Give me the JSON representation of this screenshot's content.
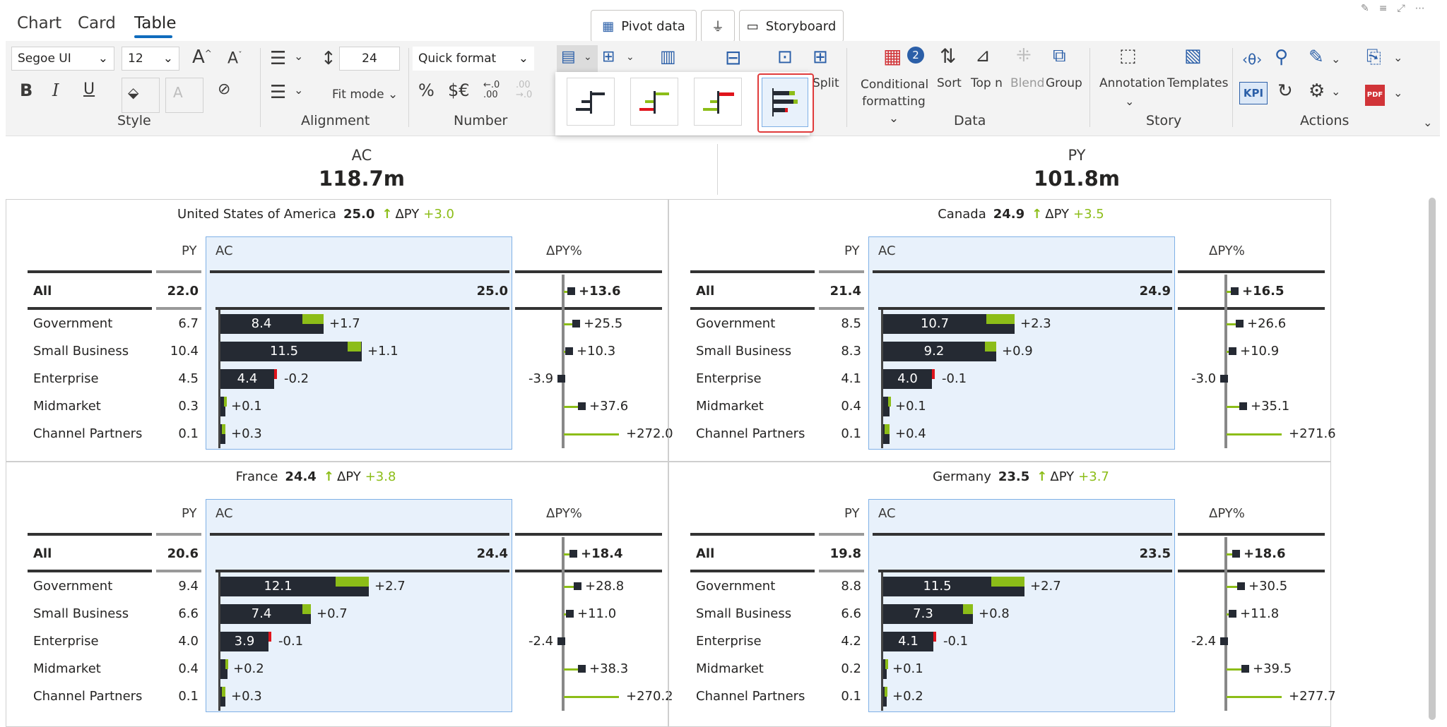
{
  "ribbon": {
    "tabs": [
      "Chart",
      "Card",
      "Table"
    ],
    "active_tab": "Table",
    "pivot_label": "Pivot data",
    "storyboard_label": "Storyboard",
    "font_family": "Segoe UI",
    "font_size": "12",
    "row_height": "24",
    "fit_mode": "Fit mode",
    "quick_format": "Quick format",
    "percent": "%",
    "currency": "$€",
    "dec_inc": ".0 .00",
    "dec_dec": ".00 .0",
    "groups": {
      "style": "Style",
      "alignment": "Alignment",
      "number": "Number",
      "data": "Data",
      "story": "Story",
      "actions": "Actions"
    },
    "split_label": "Split",
    "cond_format_label": "Conditional",
    "cond_format_label2": "formatting",
    "cond_badge": "2",
    "sort_label": "Sort",
    "topn_label": "Top n",
    "blend_label": "Blend",
    "group_label": "Group",
    "annotation_label": "Annotation",
    "templates_label": "Templates",
    "kpi_label": "KPI",
    "bold": "B",
    "italic": "I",
    "underline": "U"
  },
  "kpis": {
    "ac_label": "AC",
    "ac_value": "118.7m",
    "py_label": "PY",
    "py_value": "101.8m"
  },
  "colors": {
    "ac_bar": "#252a33",
    "positive": "#8cbd18",
    "negative": "#e0141c",
    "accent": "#0f6cbd"
  },
  "panels": [
    {
      "country": "United States of America",
      "total": "25.0",
      "dpy_label": "ΔPY",
      "dpy": "+3.0",
      "headers": {
        "py": "PY",
        "ac": "AC",
        "pct": "ΔPY%"
      },
      "rows": [
        {
          "label": "All",
          "py": "22.0",
          "ac": "25.0",
          "pct": "+13.6",
          "pctv": 13.6
        },
        {
          "label": "Government",
          "py": "6.7",
          "ac": "8.4",
          "delta": "+1.7",
          "acv": 8.4,
          "dv": 1.7,
          "pct": "+25.5",
          "pctv": 25.5
        },
        {
          "label": "Small Business",
          "py": "10.4",
          "ac": "11.5",
          "delta": "+1.1",
          "acv": 11.5,
          "dv": 1.1,
          "pct": "+10.3",
          "pctv": 10.3
        },
        {
          "label": "Enterprise",
          "py": "4.5",
          "ac": "4.4",
          "delta": "-0.2",
          "acv": 4.4,
          "dv": -0.2,
          "pct": "-3.9",
          "pctv": -3.9
        },
        {
          "label": "Midmarket",
          "py": "0.3",
          "ac": "",
          "delta": "+0.1",
          "acv": 0.4,
          "dv": 0.1,
          "pct": "+37.6",
          "pctv": 37.6
        },
        {
          "label": "Channel Partners",
          "py": "0.1",
          "ac": "",
          "delta": "+0.3",
          "acv": 0.4,
          "dv": 0.3,
          "pct": "+272.0",
          "pctv": 272.0
        }
      ]
    },
    {
      "country": "Canada",
      "total": "24.9",
      "dpy_label": "ΔPY",
      "dpy": "+3.5",
      "headers": {
        "py": "PY",
        "ac": "AC",
        "pct": "ΔPY%"
      },
      "rows": [
        {
          "label": "All",
          "py": "21.4",
          "ac": "24.9",
          "pct": "+16.5",
          "pctv": 16.5
        },
        {
          "label": "Government",
          "py": "8.5",
          "ac": "10.7",
          "delta": "+2.3",
          "acv": 10.7,
          "dv": 2.3,
          "pct": "+26.6",
          "pctv": 26.6
        },
        {
          "label": "Small Business",
          "py": "8.3",
          "ac": "9.2",
          "delta": "+0.9",
          "acv": 9.2,
          "dv": 0.9,
          "pct": "+10.9",
          "pctv": 10.9
        },
        {
          "label": "Enterprise",
          "py": "4.1",
          "ac": "4.0",
          "delta": "-0.1",
          "acv": 4.0,
          "dv": -0.1,
          "pct": "-3.0",
          "pctv": -3.0
        },
        {
          "label": "Midmarket",
          "py": "0.4",
          "ac": "",
          "delta": "+0.1",
          "acv": 0.5,
          "dv": 0.1,
          "pct": "+35.1",
          "pctv": 35.1
        },
        {
          "label": "Channel Partners",
          "py": "0.1",
          "ac": "",
          "delta": "+0.4",
          "acv": 0.5,
          "dv": 0.4,
          "pct": "+271.6",
          "pctv": 271.6
        }
      ]
    },
    {
      "country": "France",
      "total": "24.4",
      "dpy_label": "ΔPY",
      "dpy": "+3.8",
      "headers": {
        "py": "PY",
        "ac": "AC",
        "pct": "ΔPY%"
      },
      "rows": [
        {
          "label": "All",
          "py": "20.6",
          "ac": "24.4",
          "pct": "+18.4",
          "pctv": 18.4
        },
        {
          "label": "Government",
          "py": "9.4",
          "ac": "12.1",
          "delta": "+2.7",
          "acv": 12.1,
          "dv": 2.7,
          "pct": "+28.8",
          "pctv": 28.8
        },
        {
          "label": "Small Business",
          "py": "6.6",
          "ac": "7.4",
          "delta": "+0.7",
          "acv": 7.4,
          "dv": 0.7,
          "pct": "+11.0",
          "pctv": 11.0
        },
        {
          "label": "Enterprise",
          "py": "4.0",
          "ac": "3.9",
          "delta": "-0.1",
          "acv": 3.9,
          "dv": -0.1,
          "pct": "-2.4",
          "pctv": -2.4
        },
        {
          "label": "Midmarket",
          "py": "0.4",
          "ac": "",
          "delta": "+0.2",
          "acv": 0.6,
          "dv": 0.2,
          "pct": "+38.3",
          "pctv": 38.3
        },
        {
          "label": "Channel Partners",
          "py": "0.1",
          "ac": "",
          "delta": "+0.3",
          "acv": 0.4,
          "dv": 0.3,
          "pct": "+270.2",
          "pctv": 270.2
        }
      ]
    },
    {
      "country": "Germany",
      "total": "23.5",
      "dpy_label": "ΔPY",
      "dpy": "+3.7",
      "headers": {
        "py": "PY",
        "ac": "AC",
        "pct": "ΔPY%"
      },
      "rows": [
        {
          "label": "All",
          "py": "19.8",
          "ac": "23.5",
          "pct": "+18.6",
          "pctv": 18.6
        },
        {
          "label": "Government",
          "py": "8.8",
          "ac": "11.5",
          "delta": "+2.7",
          "acv": 11.5,
          "dv": 2.7,
          "pct": "+30.5",
          "pctv": 30.5
        },
        {
          "label": "Small Business",
          "py": "6.6",
          "ac": "7.3",
          "delta": "+0.8",
          "acv": 7.3,
          "dv": 0.8,
          "pct": "+11.8",
          "pctv": 11.8
        },
        {
          "label": "Enterprise",
          "py": "4.2",
          "ac": "4.1",
          "delta": "-0.1",
          "acv": 4.1,
          "dv": -0.1,
          "pct": "-2.4",
          "pctv": -2.4
        },
        {
          "label": "Midmarket",
          "py": "0.2",
          "ac": "",
          "delta": "+0.1",
          "acv": 0.3,
          "dv": 0.1,
          "pct": "+39.5",
          "pctv": 39.5
        },
        {
          "label": "Channel Partners",
          "py": "0.1",
          "ac": "",
          "delta": "+0.2",
          "acv": 0.3,
          "dv": 0.2,
          "pct": "+277.7",
          "pctv": 277.7
        }
      ]
    }
  ]
}
